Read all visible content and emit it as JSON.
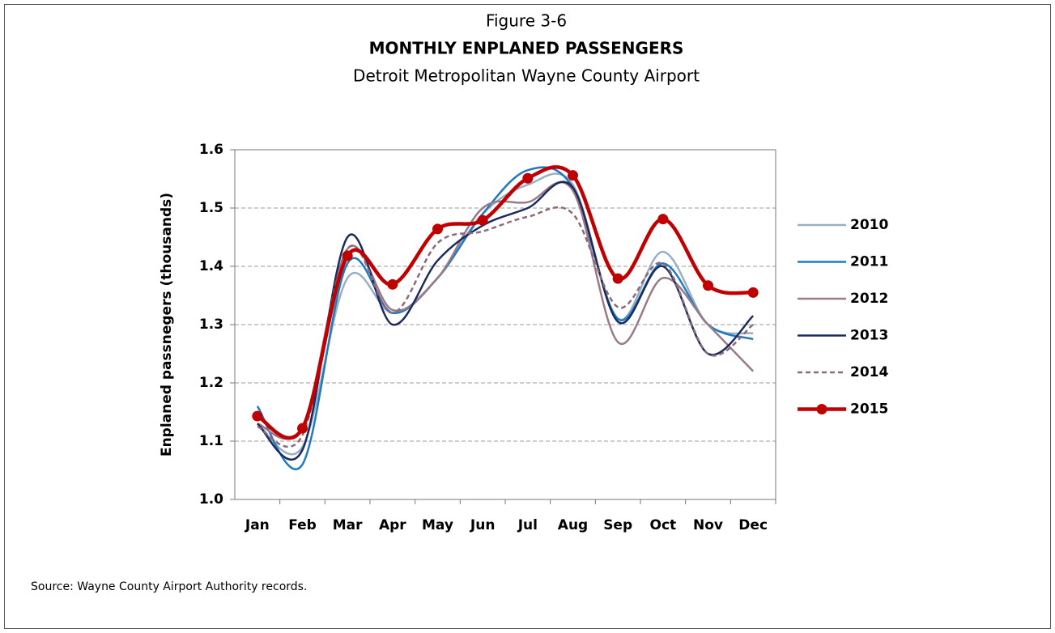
{
  "chart_data": {
    "type": "line",
    "figure_label": "Figure 3-6",
    "title": "MONTHLY ENPLANED PASSENGERS",
    "subtitle": "Detroit Metropolitan Wayne County Airport",
    "ylabel": "Enplaned passnegers (thousands)",
    "source": "Source:  Wayne County Airport Authority records.",
    "categories": [
      "Jan",
      "Feb",
      "Mar",
      "Apr",
      "May",
      "Jun",
      "Jul",
      "Aug",
      "Sep",
      "Oct",
      "Nov",
      "Dec"
    ],
    "ylim": [
      1.0,
      1.6
    ],
    "yticks": [
      {
        "value": 1.0,
        "label": "1.0"
      },
      1.1,
      1.2,
      1.3,
      1.4,
      1.5,
      1.6
    ],
    "grid": true,
    "smooth": true,
    "legend": "right",
    "series": [
      {
        "name": "2010",
        "color": "#9aafc2",
        "values": [
          1.13,
          1.09,
          1.38,
          1.32,
          1.38,
          1.49,
          1.54,
          1.54,
          1.31,
          1.425,
          1.3,
          1.285
        ]
      },
      {
        "name": "2011",
        "color": "#1f7bc0",
        "values": [
          1.16,
          1.06,
          1.405,
          1.32,
          1.38,
          1.49,
          1.565,
          1.535,
          1.31,
          1.405,
          1.3,
          1.275
        ]
      },
      {
        "name": "2012",
        "color": "#9a7a86",
        "values": [
          1.13,
          1.125,
          1.43,
          1.325,
          1.38,
          1.5,
          1.51,
          1.53,
          1.27,
          1.38,
          1.3,
          1.22
        ]
      },
      {
        "name": "2013",
        "color": "#1c2b5e",
        "values": [
          1.13,
          1.085,
          1.45,
          1.3,
          1.41,
          1.47,
          1.5,
          1.535,
          1.305,
          1.4,
          1.25,
          1.315
        ]
      },
      {
        "name": "2014",
        "color": "#8c6a7a",
        "line_style": "dashed",
        "values": [
          1.125,
          1.11,
          1.43,
          1.32,
          1.44,
          1.46,
          1.485,
          1.49,
          1.33,
          1.405,
          1.25,
          1.3
        ]
      },
      {
        "name": "2015",
        "color": "#c00000",
        "markers": true,
        "values": [
          1.143,
          1.122,
          1.418,
          1.369,
          1.464,
          1.479,
          1.551,
          1.556,
          1.379,
          1.481,
          1.367,
          1.355
        ]
      }
    ]
  }
}
